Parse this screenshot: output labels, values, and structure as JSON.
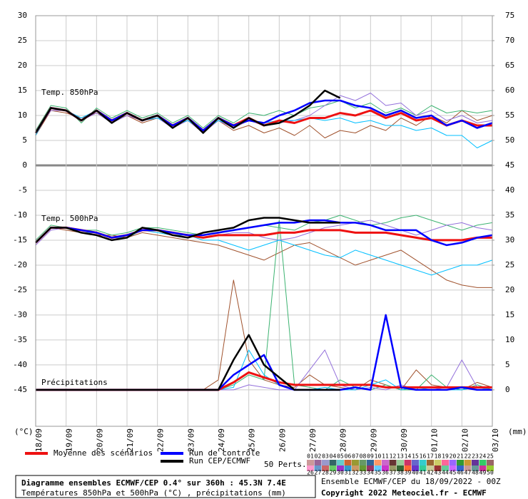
{
  "chart_data": {
    "type": "line",
    "x": [
      0,
      0.5,
      1,
      1.5,
      2,
      2.5,
      3,
      3.5,
      4,
      4.5,
      5,
      5.5,
      6,
      6.5,
      7,
      7.5,
      8,
      8.5,
      9,
      9.5,
      10,
      10.5,
      11,
      11.5,
      12,
      12.5,
      13,
      13.5,
      14,
      14.5,
      15
    ],
    "xlim": [
      0,
      15
    ],
    "xticks": [
      {
        "value": 0,
        "label": "18/09"
      },
      {
        "value": 1,
        "label": "19/09"
      },
      {
        "value": 2,
        "label": "20/09"
      },
      {
        "value": 3,
        "label": "21/09"
      },
      {
        "value": 4,
        "label": "22/09"
      },
      {
        "value": 5,
        "label": "23/09"
      },
      {
        "value": 6,
        "label": "24/09"
      },
      {
        "value": 7,
        "label": "25/09"
      },
      {
        "value": 8,
        "label": "26/09"
      },
      {
        "value": 9,
        "label": "27/09"
      },
      {
        "value": 10,
        "label": "28/09"
      },
      {
        "value": 11,
        "label": "29/09"
      },
      {
        "value": 12,
        "label": "30/09"
      },
      {
        "value": 13,
        "label": "01/10"
      },
      {
        "value": 14,
        "label": "02/10"
      },
      {
        "value": 15,
        "label": "03/10"
      }
    ],
    "ylim": [
      -52.3,
      30
    ],
    "yticks": [
      -45,
      -40,
      -35,
      -30,
      -25,
      -20,
      -15,
      -10,
      -5,
      0,
      5,
      10,
      15,
      20,
      25,
      30
    ],
    "y2lim": [
      -7.3,
      75
    ],
    "y2ticks": [
      0,
      5,
      10,
      15,
      20,
      25,
      30,
      35,
      40,
      45,
      50,
      55,
      60,
      65,
      70,
      75
    ],
    "grid": true,
    "y_unit": "(°C)",
    "y2_unit": "(mm)",
    "panels": [
      {
        "key": "t850",
        "label": "Temp. 850hPa",
        "axis": "y"
      },
      {
        "key": "t500",
        "label": "Temp. 500hPa",
        "axis": "y"
      },
      {
        "key": "precip",
        "label": "Précipitations",
        "axis": "y2"
      }
    ],
    "series": [
      {
        "color": "#a0522d",
        "width": 1,
        "t850": [
          6,
          11,
          10.5,
          9.5,
          10.5,
          9,
          10,
          8.5,
          9.5,
          8,
          9,
          6.5,
          9,
          7,
          8,
          6.5,
          7.5,
          6,
          8,
          5.5,
          7,
          6.5,
          8,
          7,
          9.5,
          8,
          10,
          8.5,
          11,
          9,
          10
        ],
        "t500": [
          -15.5,
          -12.5,
          -13,
          -13.5,
          -14,
          -14,
          -14.5,
          -13.5,
          -14,
          -14.5,
          -15,
          -15.5,
          -16,
          -17,
          -18,
          -19,
          -17.5,
          -16,
          -15.5,
          -17,
          -18.5,
          -20,
          -19,
          -18,
          -17,
          -19,
          -21,
          -23,
          -24,
          -24.5,
          -24.5
        ],
        "precip": [
          0,
          0,
          0,
          0,
          0,
          0,
          0,
          0,
          0,
          0,
          0,
          0,
          2,
          22,
          6,
          2,
          1,
          0.5,
          3,
          1,
          0.5,
          0,
          2,
          1,
          0,
          4,
          1,
          0.5,
          0,
          1.5,
          0.5
        ]
      },
      {
        "color": "#3cb371",
        "width": 1,
        "t850": [
          7,
          12,
          11.5,
          8.5,
          11.5,
          9.5,
          11,
          9.5,
          10.5,
          8.5,
          10,
          7.5,
          10,
          8.5,
          10.5,
          10,
          11,
          10,
          11.5,
          12,
          13,
          11.5,
          12.5,
          10.5,
          11.5,
          10,
          12,
          10.5,
          11,
          10.5,
          11
        ],
        "t500": [
          -15,
          -12,
          -12.5,
          -13,
          -13,
          -14,
          -13.5,
          -12.5,
          -12.5,
          -13,
          -13.5,
          -14,
          -13.5,
          -13,
          -12.5,
          -12,
          -12.5,
          -13,
          -11.5,
          -11,
          -10,
          -11,
          -12,
          -11.5,
          -10.5,
          -10,
          -11,
          -12,
          -13,
          -12,
          -11.5
        ],
        "precip": [
          0,
          0,
          0,
          0,
          0,
          0,
          0,
          0,
          0,
          0,
          0,
          0,
          0,
          1,
          3,
          2,
          34,
          1,
          0.5,
          0,
          2,
          0.5,
          0,
          1,
          0,
          0,
          3,
          0.5,
          0,
          1,
          0
        ]
      },
      {
        "color": "#9370db",
        "width": 1,
        "t850": [
          6.5,
          11,
          11,
          9,
          10.5,
          8.5,
          10,
          9,
          9.5,
          7.5,
          9,
          6.5,
          9,
          7.5,
          9,
          8,
          8.5,
          9,
          10,
          12,
          14,
          13,
          14.5,
          12,
          12.5,
          10,
          11,
          9,
          10,
          8.5,
          9
        ],
        "t500": [
          -16,
          -13,
          -12.5,
          -13,
          -14,
          -15,
          -14,
          -13,
          -13,
          -14,
          -14,
          -14.5,
          -14,
          -13.5,
          -13.5,
          -14.5,
          -15,
          -14.5,
          -13.5,
          -12.5,
          -12,
          -11.5,
          -11,
          -12,
          -13,
          -14,
          -13,
          -12,
          -11.5,
          -12.5,
          -13
        ],
        "precip": [
          0,
          0,
          0,
          0,
          0,
          0,
          0,
          0,
          0,
          0,
          0,
          0,
          0,
          0,
          1,
          0.5,
          0,
          0,
          4,
          8,
          1,
          0,
          0.5,
          0,
          1,
          0,
          0,
          0.5,
          6,
          0.5,
          0
        ]
      },
      {
        "color": "#00bfff",
        "width": 1,
        "t850": [
          6,
          11.5,
          11,
          9.5,
          11,
          9,
          10.5,
          9,
          9.5,
          8,
          9,
          7,
          9,
          8,
          9,
          8.5,
          9,
          9,
          9.5,
          9,
          9.5,
          8.5,
          9,
          8,
          8,
          7,
          7.5,
          6,
          6,
          3.5,
          5
        ],
        "t500": [
          -15.5,
          -12.5,
          -12.5,
          -13.5,
          -13.5,
          -14.5,
          -14.5,
          -13,
          -13.5,
          -14,
          -14,
          -15,
          -15,
          -16,
          -17,
          -16,
          -15,
          -16,
          -17,
          -18,
          -18.5,
          -17,
          -18,
          -19,
          -20,
          -21,
          -22,
          -21,
          -20,
          -20,
          -19
        ],
        "precip": [
          0,
          0,
          0,
          0,
          0,
          0,
          0,
          0,
          0,
          0,
          0,
          0,
          0,
          0.5,
          8,
          3,
          1,
          0,
          0,
          0.5,
          0,
          0,
          1,
          2,
          0,
          0.5,
          0,
          0,
          0,
          0.5,
          0
        ]
      },
      {
        "name": "Moyenne des scénarios",
        "color": "#ee1111",
        "width": 3,
        "t850": [
          6.5,
          11.5,
          11,
          9,
          11,
          9,
          10.5,
          9,
          10,
          8,
          9.5,
          7,
          9.5,
          8,
          9.5,
          8,
          9,
          8.5,
          9.5,
          9.5,
          10.5,
          10,
          11,
          9.5,
          10.5,
          9,
          9.5,
          8,
          9,
          8,
          8
        ],
        "t500": [
          -15.5,
          -12.5,
          -12.5,
          -13,
          -13.5,
          -14.5,
          -14,
          -13,
          -13,
          -13.5,
          -14,
          -14.5,
          -14,
          -14,
          -14,
          -14,
          -13.5,
          -13.5,
          -13,
          -13,
          -13,
          -13.5,
          -13.5,
          -13.5,
          -14,
          -14.5,
          -15,
          -15,
          -15,
          -14.5,
          -14.5
        ],
        "precip": [
          0,
          0,
          0,
          0,
          0,
          0,
          0,
          0,
          0,
          0,
          0,
          0,
          0,
          1.5,
          3.5,
          2.5,
          1.5,
          1,
          1,
          1,
          1,
          1,
          1,
          0.5,
          0.5,
          0.5,
          0.5,
          0.5,
          0.5,
          0.5,
          0.5
        ]
      },
      {
        "name": "Run de contrôle",
        "color": "#0000ff",
        "width": 2.5,
        "t850": [
          6.5,
          11.5,
          11,
          9,
          11,
          9,
          10.5,
          9,
          10,
          8,
          9.5,
          7,
          9.5,
          8,
          9,
          8.5,
          10,
          11,
          12.5,
          13,
          13,
          12,
          11.5,
          10,
          11,
          9.5,
          10,
          8,
          9,
          7.5,
          8.5
        ],
        "t500": [
          -15.5,
          -12.5,
          -12.5,
          -13,
          -13.5,
          -14.5,
          -14,
          -13,
          -13,
          -13.5,
          -14,
          -14,
          -13.5,
          -13,
          -12.5,
          -12,
          -11.5,
          -11.5,
          -11,
          -11,
          -11.5,
          -11.5,
          -12,
          -13,
          -13,
          -13,
          -15,
          -16,
          -15.5,
          -14.5,
          -14
        ],
        "precip": [
          0,
          0,
          0,
          0,
          0,
          0,
          0,
          0,
          0,
          0,
          0,
          0,
          0,
          3,
          5,
          7,
          1,
          0,
          0,
          0,
          0,
          0.5,
          0,
          15,
          0.5,
          0,
          0,
          0,
          0.5,
          0,
          0
        ]
      },
      {
        "name": "Run CEP/ECMWF",
        "color": "#000000",
        "width": 2.5,
        "t850": [
          6.5,
          11.5,
          11,
          9,
          11,
          8.5,
          10.5,
          9,
          10,
          7.5,
          9.5,
          6.5,
          9.5,
          7.5,
          9.5,
          8,
          8.5,
          10,
          12,
          15,
          13.5,
          null,
          null,
          null,
          null,
          null,
          null,
          null,
          null,
          null,
          null
        ],
        "t500": [
          -15.5,
          -12.5,
          -12.5,
          -13.5,
          -14,
          -15,
          -14.5,
          -12.5,
          -13,
          -14,
          -14.5,
          -13.5,
          -13,
          -12.5,
          -11,
          -10.5,
          -10.5,
          -11,
          -11.5,
          -11.5,
          -11.5,
          null,
          null,
          null,
          null,
          null,
          null,
          null,
          null,
          null,
          null
        ],
        "precip": [
          0,
          0,
          0,
          0,
          0,
          0,
          0,
          0,
          0,
          0,
          0,
          0,
          0,
          6,
          11,
          5,
          2.5,
          0,
          0,
          0,
          0,
          null,
          null,
          null,
          null,
          null,
          null,
          null,
          null,
          null,
          null
        ]
      }
    ],
    "perts_label": "50 Perts.",
    "perts": {
      "labels": [
        "01",
        "02",
        "03",
        "04",
        "05",
        "06",
        "07",
        "08",
        "09",
        "10",
        "11",
        "12",
        "13",
        "14",
        "15",
        "16",
        "17",
        "18",
        "19",
        "20",
        "21",
        "22",
        "23",
        "24",
        "25",
        "26",
        "27",
        "28",
        "29",
        "30",
        "31",
        "32",
        "33",
        "34",
        "35",
        "36",
        "37",
        "38",
        "39",
        "40",
        "41",
        "42",
        "43",
        "44",
        "45",
        "46",
        "47",
        "48",
        "49",
        "50"
      ],
      "colors": [
        "#cc9999",
        "#996699",
        "#9999cc",
        "#336666",
        "#66cccc",
        "#cc6633",
        "#999933",
        "#669966",
        "#336699",
        "#ff9966",
        "#cc66cc",
        "#663333",
        "#99cc99",
        "#cc3366",
        "#6666cc",
        "#33cccc",
        "#996633",
        "#cccc66",
        "#ff6699",
        "#9966ff",
        "#339933",
        "#cc9933",
        "#663399",
        "#33cc66",
        "#996666",
        "#ff99cc",
        "#6699cc",
        "#cc6666",
        "#66cc66",
        "#9933cc",
        "#3399cc",
        "#cc9966",
        "#669933",
        "#993366",
        "#66ccff",
        "#cc33cc",
        "#999966",
        "#336633",
        "#ff6633",
        "#6633cc",
        "#33cc99",
        "#cccc99",
        "#993333",
        "#66cc99",
        "#cc66ff",
        "#3366cc",
        "#cc9999",
        "#669999",
        "#cc3399",
        "#99cc33"
      ]
    },
    "footer": {
      "title": "Diagramme ensembles ECMWF/CEP 0.4° sur 360h : 45.3N 7.4E",
      "subtitle": "Températures 850hPa et 500hPa (°C) , précipitations (mm)",
      "run": "Ensemble ECMWF/CEP du 18/09/2022 - 00Z",
      "copyright": "Copyright 2022 Meteociel.fr - ECMWF"
    }
  }
}
